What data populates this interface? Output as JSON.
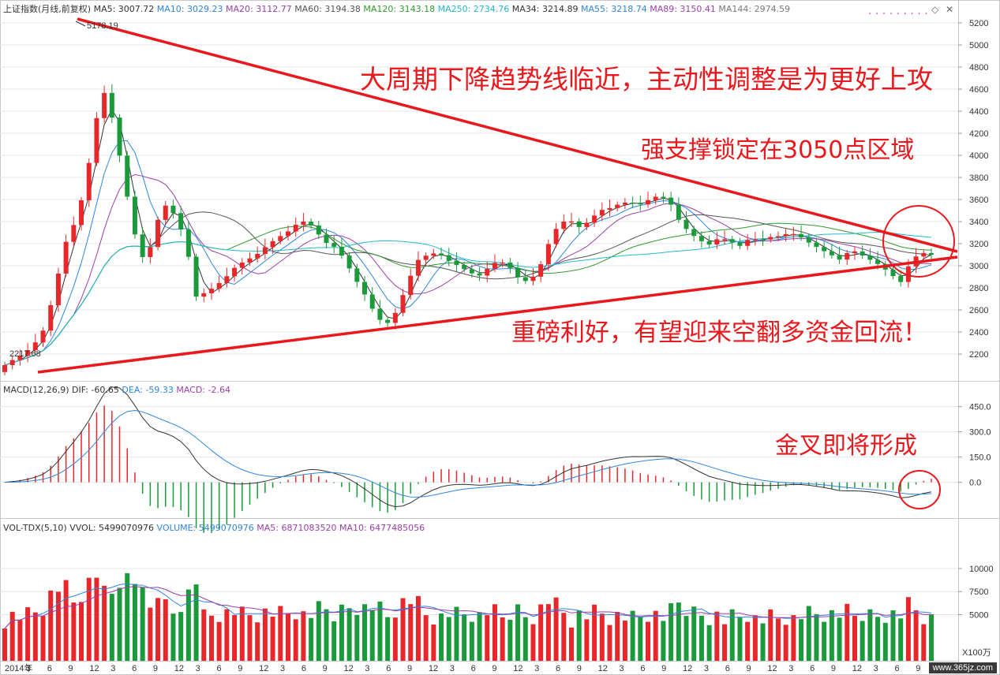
{
  "header": {
    "main": {
      "title": "上证指数(月线,前复权)",
      "indicators": [
        {
          "label": "MA5: 3007.72",
          "color": "#333333"
        },
        {
          "label": "MA10: 3029.23",
          "color": "#2e86de"
        },
        {
          "label": "MA20: 3112.77",
          "color": "#9b3fa8"
        },
        {
          "label": "MA60: 3194.38",
          "color": "#555555"
        },
        {
          "label": "MA120: 3143.18",
          "color": "#2e9b2e"
        },
        {
          "label": "MA250: 2734.76",
          "color": "#22b8cf"
        },
        {
          "label": "MA34: 3214.89",
          "color": "#333333"
        },
        {
          "label": "MA55: 3218.74",
          "color": "#2e86de"
        },
        {
          "label": "MA89: 3150.41",
          "color": "#9b3fa8"
        },
        {
          "label": "MA144: 2974.59",
          "color": "#777777"
        }
      ]
    },
    "macd": {
      "title": "MACD(12,26,9)",
      "indicators": [
        {
          "label": "DIF: -60.65",
          "color": "#333333"
        },
        {
          "label": "DEA: -59.33",
          "color": "#2e86de"
        },
        {
          "label": "MACD: -2.64",
          "color": "#9b3fa8"
        }
      ]
    },
    "vol": {
      "title": "VOL-TDX(5,10)",
      "indicators": [
        {
          "label": "VVOL: 5499070976",
          "color": "#333333"
        },
        {
          "label": "VOLUME: 5499070976",
          "color": "#2e86de"
        },
        {
          "label": "MA5: 6871083520",
          "color": "#9b3fa8"
        },
        {
          "label": "MA10: 6477485056",
          "color": "#9b3fa8"
        }
      ]
    }
  },
  "annotations": {
    "line1": "大周期下降趋势线临近，主动性调整是为更好上攻",
    "line2": "强支撑锁定在3050点区域",
    "line3": "重磅利好，有望迎来空翻多资金回流！",
    "line4": "金叉即将形成"
  },
  "price_labels": {
    "high": "5178.19",
    "low": "2217.68"
  },
  "unit_label": "X100万",
  "watermark": "www.365jz.com",
  "colors": {
    "up": "#e8272b",
    "down": "#1a9a3a",
    "trendline": "#e8181c",
    "grid": "#e6e6e6",
    "circle": "#e8181c"
  },
  "chart_data": [
    {
      "type": "candlestick",
      "title": "上证指数(月线,前复权)",
      "y_axis": {
        "ticks": [
          2200,
          2400,
          2600,
          2800,
          3000,
          3200,
          3400,
          3600,
          3800,
          4000,
          4200,
          4400,
          4600,
          4800,
          5000,
          5200
        ],
        "range": [
          2050,
          5250
        ]
      },
      "x_ticks": [
        "2014年",
        "3",
        "6",
        "9",
        "12",
        "3",
        "6",
        "9",
        "12",
        "3",
        "6",
        "9",
        "12",
        "3",
        "6",
        "9",
        "12",
        "3",
        "6",
        "9",
        "12",
        "3",
        "6",
        "9",
        "12",
        "3",
        "6",
        "9",
        "12",
        "3",
        "6",
        "9",
        "12",
        "3",
        "6",
        "9",
        "12",
        "3",
        "6",
        "9",
        "12",
        "3",
        "6",
        "9",
        "12"
      ],
      "ohlc_monthly_close": [
        2100,
        2160,
        2210,
        2300,
        2440,
        2800,
        3200,
        3400,
        3720,
        4300,
        4600,
        4200,
        3700,
        3250,
        3000,
        3380,
        3550,
        3450,
        3200,
        2720,
        2760,
        2820,
        2900,
        3000,
        3050,
        3100,
        3180,
        3250,
        3300,
        3380,
        3410,
        3300,
        3200,
        3160,
        3010,
        2850,
        2700,
        2520,
        2480,
        2600,
        2850,
        3050,
        3100,
        3120,
        3050,
        3000,
        2950,
        2900,
        2980,
        3050,
        3000,
        2890,
        2850,
        2960,
        3200,
        3380,
        3420,
        3350,
        3400,
        3500,
        3520,
        3560,
        3580,
        3550,
        3600,
        3640,
        3580,
        3400,
        3300,
        3230,
        3190,
        3260,
        3220,
        3180,
        3250,
        3230,
        3260,
        3270,
        3300,
        3260,
        3200,
        3150,
        3100,
        3050,
        3150,
        3100,
        3050,
        3000,
        2920,
        2850,
        3050,
        3120,
        3100
      ],
      "series_ma": [
        {
          "name": "MA5",
          "color": "#333333"
        },
        {
          "name": "MA10",
          "color": "#2e86de"
        },
        {
          "name": "MA20",
          "color": "#9b3fa8"
        },
        {
          "name": "MA60",
          "color": "#555555"
        },
        {
          "name": "MA120",
          "color": "#2e9b2e"
        },
        {
          "name": "MA250",
          "color": "#22b8cf"
        }
      ],
      "trendlines": [
        {
          "name": "下降趋势线",
          "from": [
            5178,
            "2015-06"
          ],
          "to": [
            3100,
            "2023-12"
          ]
        },
        {
          "name": "支撑趋势线",
          "from": [
            2150,
            "2014-01"
          ],
          "to": [
            3060,
            "2023-12"
          ]
        }
      ]
    },
    {
      "type": "bar",
      "title": "MACD(12,26,9)",
      "y_axis": {
        "ticks": [
          0.0,
          150.0,
          300.0,
          450.0
        ],
        "range": [
          -180,
          500
        ]
      },
      "series": [
        {
          "name": "DIF"
        },
        {
          "name": "DEA"
        },
        {
          "name": "MACD"
        }
      ]
    },
    {
      "type": "bar",
      "title": "VOL-TDX(5,10)",
      "y_axis": {
        "ticks": [
          5000,
          7500,
          10000
        ],
        "range": [
          0,
          13500
        ]
      },
      "series": [
        {
          "name": "VOLUME"
        },
        {
          "name": "MA5"
        },
        {
          "name": "MA10"
        }
      ]
    }
  ]
}
